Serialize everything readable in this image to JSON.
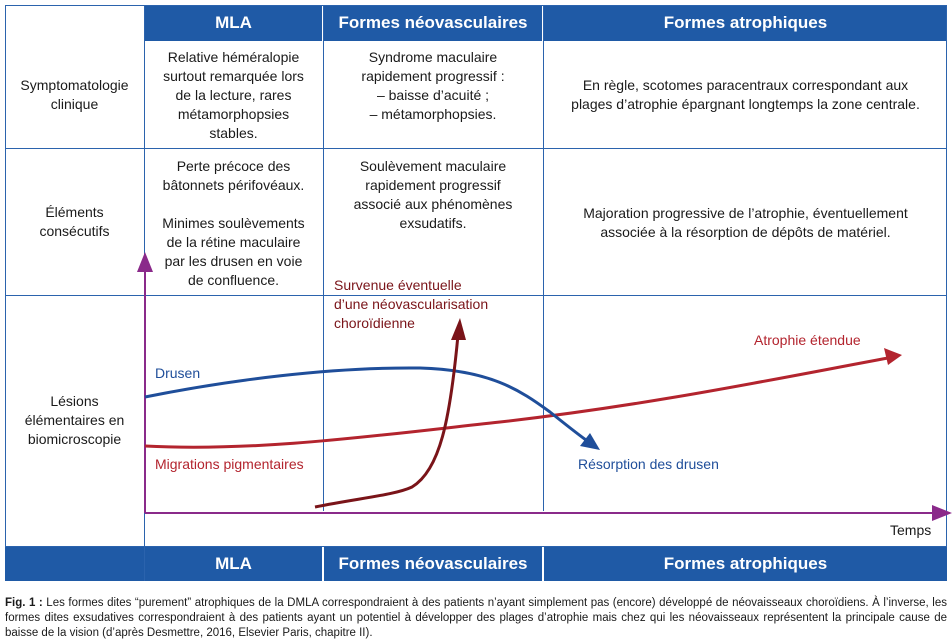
{
  "header": {
    "mla": "MLA",
    "neo": "Formes néovasculaires",
    "atro": "Formes atrophiques"
  },
  "rows": {
    "symptomatologie": {
      "label": "Symptomatologie\nclinique",
      "mla": "Relative héméralopie\nsurtout remarquée lors\nde la lecture, rares\nmétamorphopsies\nstables.",
      "neo": "Syndrome maculaire\nrapidement progressif :\n–  baisse d’acuité ;\n–  métamorphopsies.",
      "atro": "En règle, scotomes paracentraux correspondant aux\nplages d’atrophie épargnant longtemps la zone centrale."
    },
    "elements": {
      "label": "Éléments\nconsécutifs",
      "mla": "Perte précoce des\nbâtonnets périfovéaux.\n\nMinimes soulèvements\nde la rétine maculaire\npar les drusen en voie\nde confluence.",
      "neo": "Soulèvement maculaire\nrapidement progressif\nassocié aux phénomènes\nexsudatifs.",
      "atro": "Majoration progressive de l’atrophie, éventuellement\nassociée à la résorption de dépôts de matériel."
    },
    "lesions": {
      "label": "Lésions\nélémentaires en\nbiomicroscopie"
    }
  },
  "diagram": {
    "drusen": "Drusen",
    "migrations": "Migrations pigmentaires",
    "neovasc": "Survenue éventuelle\nd’une néovascularisation\nchoroïdienne",
    "atrophie": "Atrophie étendue",
    "resorption": "Résorption des drusen",
    "temps": "Temps",
    "colors": {
      "blue": "#1f4e9a",
      "red": "#b3242e",
      "darkred": "#7a1419",
      "axis": "#8a2a8a"
    }
  },
  "footer_header": {
    "mla": "MLA",
    "neo": "Formes néovasculaires",
    "atro": "Formes atrophiques"
  },
  "caption": {
    "label": "Fig. 1 :",
    "text": " Les formes dites “purement” atrophiques de la DMLA correspondraient à des patients n’ayant simplement pas (encore) développé de néovaisseaux choroïdiens. À l’inverse, les formes dites exsudatives correspondraient à des patients ayant un potentiel à développer des plages d’atrophie mais chez qui les néovaisseaux représentent la principale cause de baisse de la vision (d’après Desmettre, 2016, Elsevier Paris, chapitre II)."
  }
}
